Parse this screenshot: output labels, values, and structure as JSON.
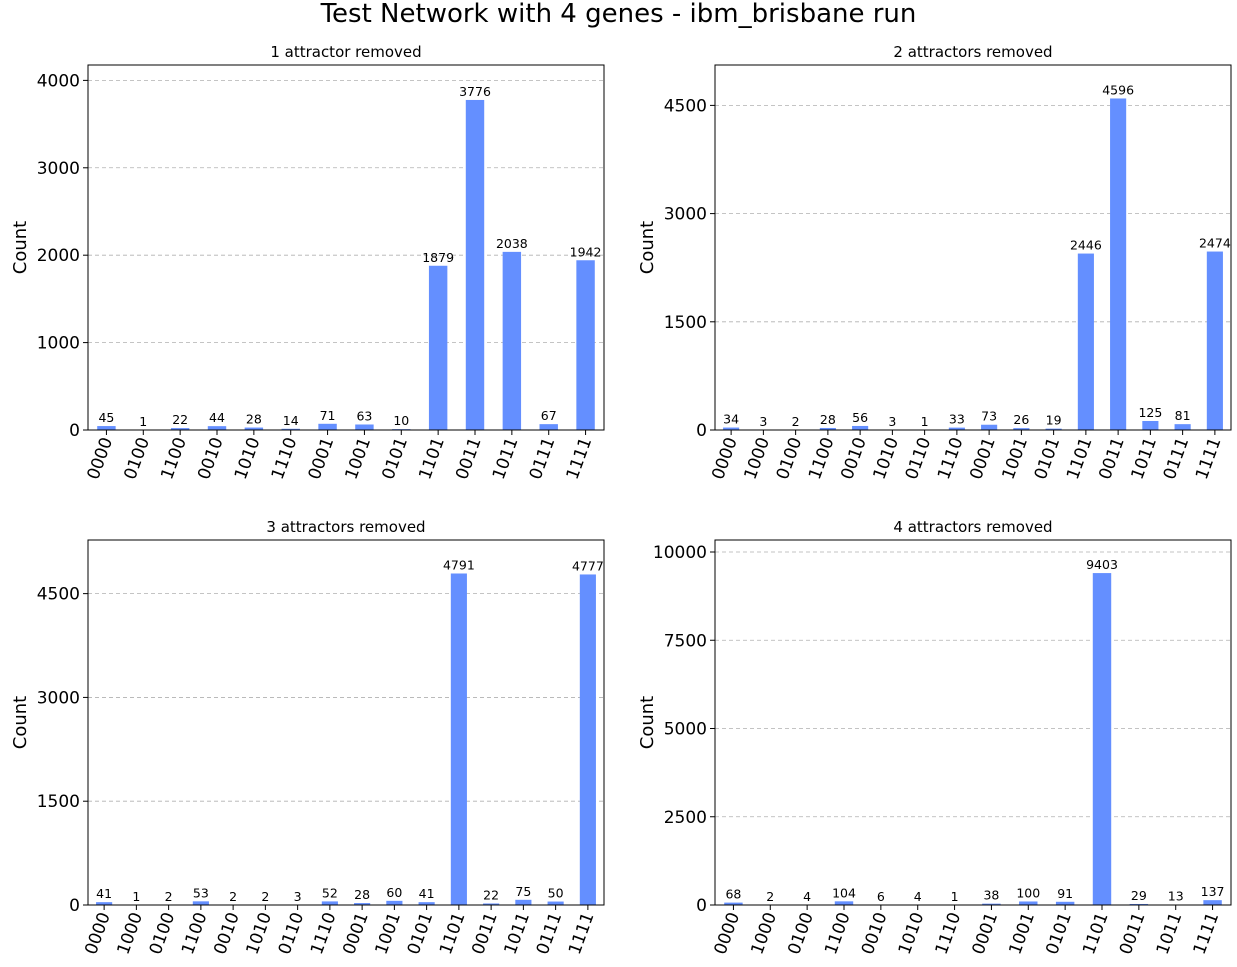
{
  "suptitle": "Test Network with 4 genes - ibm_brisbane run",
  "colors": {
    "bar": "#648fff",
    "grid": "#b0b0b0"
  },
  "chart_data": [
    {
      "type": "bar",
      "title": "1 attractor removed",
      "ylabel": "Count",
      "ylim": [
        0,
        4176
      ],
      "yticks": [
        0,
        1000,
        2000,
        3000,
        4000
      ],
      "grid": true,
      "categories": [
        "0000",
        "0100",
        "1100",
        "0010",
        "1010",
        "1110",
        "0001",
        "1001",
        "0101",
        "1101",
        "0011",
        "1011",
        "0111",
        "1111"
      ],
      "values": [
        45,
        1,
        22,
        44,
        28,
        14,
        71,
        63,
        10,
        1879,
        3776,
        2038,
        67,
        1942
      ]
    },
    {
      "type": "bar",
      "title": "2 attractors removed",
      "ylabel": "Count",
      "ylim": [
        0,
        5060
      ],
      "yticks": [
        0,
        1500,
        3000,
        4500
      ],
      "grid": true,
      "categories": [
        "0000",
        "1000",
        "0100",
        "1100",
        "0010",
        "1010",
        "0110",
        "1110",
        "0001",
        "1001",
        "0101",
        "1101",
        "0011",
        "1011",
        "0111",
        "1111"
      ],
      "values": [
        34,
        3,
        2,
        28,
        56,
        3,
        1,
        33,
        73,
        26,
        19,
        2446,
        4596,
        125,
        81,
        2474
      ]
    },
    {
      "type": "bar",
      "title": "3 attractors removed",
      "ylabel": "Count",
      "ylim": [
        0,
        5275
      ],
      "yticks": [
        0,
        1500,
        3000,
        4500
      ],
      "grid": true,
      "categories": [
        "0000",
        "1000",
        "0100",
        "1100",
        "0010",
        "1010",
        "0110",
        "1110",
        "0001",
        "1001",
        "0101",
        "1101",
        "0011",
        "1011",
        "0111",
        "1111"
      ],
      "values": [
        41,
        1,
        2,
        53,
        2,
        2,
        3,
        52,
        28,
        60,
        41,
        4791,
        22,
        75,
        50,
        4777
      ]
    },
    {
      "type": "bar",
      "title": "4 attractors removed",
      "ylabel": "Count",
      "ylim": [
        0,
        10340
      ],
      "yticks": [
        0,
        2500,
        5000,
        7500,
        10000
      ],
      "grid": true,
      "categories": [
        "0000",
        "1000",
        "0100",
        "1100",
        "0010",
        "1010",
        "1110",
        "0001",
        "1001",
        "0101",
        "1101",
        "0011",
        "1011",
        "1111"
      ],
      "values": [
        68,
        2,
        4,
        104,
        6,
        4,
        1,
        38,
        100,
        91,
        9403,
        29,
        13,
        137
      ]
    }
  ]
}
